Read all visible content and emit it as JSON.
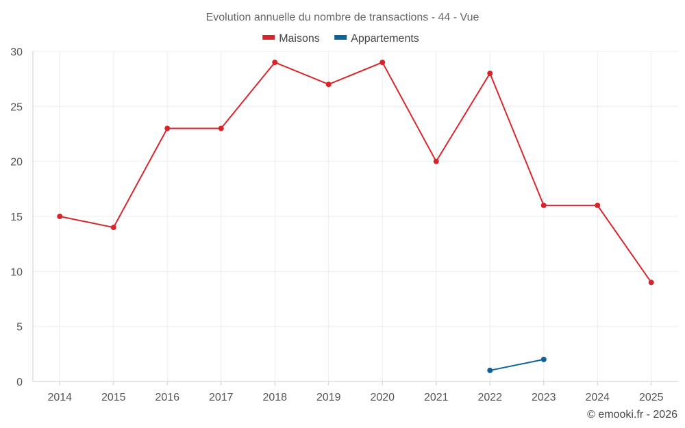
{
  "chart_data": {
    "type": "line",
    "title": "Evolution annuelle du nombre de transactions - 44 - Vue",
    "categories": [
      "2014",
      "2015",
      "2016",
      "2017",
      "2018",
      "2019",
      "2020",
      "2021",
      "2022",
      "2023",
      "2024",
      "2025"
    ],
    "series": [
      {
        "name": "Maisons",
        "color": "#d7262b",
        "values": [
          15,
          14,
          23,
          23,
          29,
          27,
          29,
          20,
          28,
          16,
          16,
          9
        ]
      },
      {
        "name": "Appartements",
        "color": "#0e6299",
        "values": [
          null,
          null,
          null,
          null,
          null,
          null,
          null,
          null,
          1,
          2,
          null,
          null
        ]
      }
    ],
    "ylim": [
      0,
      30
    ],
    "yticks": [
      0,
      5,
      10,
      15,
      20,
      25,
      30
    ],
    "grid": true,
    "legend_position": "top-center"
  },
  "footer": "© emooki.fr - 2026"
}
